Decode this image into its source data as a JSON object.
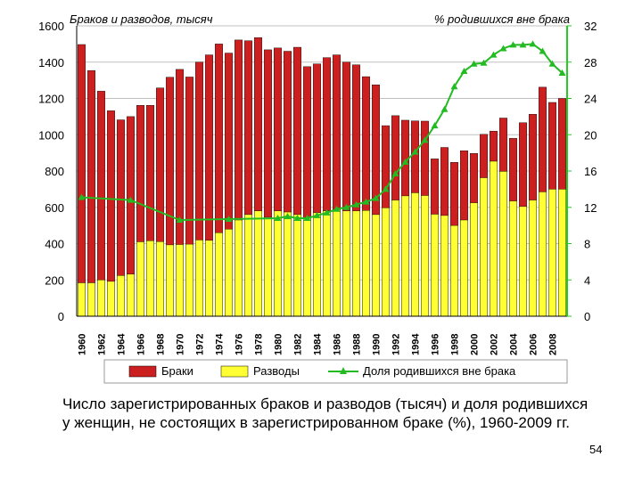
{
  "caption": "Число зарегистрированных браков и разводов (тысяч) и доля родившихся у женщин, не состоящих в зарегистрированном браке (%), 1960-2009 гг.",
  "page_number": "54",
  "chart_data": {
    "type": "bar",
    "left_axis_title": "Браков и разводов, тысяч",
    "right_axis_title": "% родившихся вне брака",
    "ylim": [
      0,
      1600
    ],
    "y_ticks": [
      "0",
      "200",
      "400",
      "600",
      "800",
      "1000",
      "1200",
      "1400",
      "1600"
    ],
    "y2lim": [
      0,
      32
    ],
    "y2_ticks": [
      "0",
      "4",
      "8",
      "12",
      "16",
      "20",
      "24",
      "28",
      "32"
    ],
    "x_tick_labels": [
      "1960",
      "1962",
      "1964",
      "1966",
      "1968",
      "1970",
      "1972",
      "1974",
      "1976",
      "1978",
      "1980",
      "1982",
      "1984",
      "1986",
      "1988",
      "1990",
      "1992",
      "1994",
      "1996",
      "1998",
      "2000",
      "2002",
      "2004",
      "2006",
      "2008"
    ],
    "grid": true,
    "legend_position": "bottom",
    "colors": {
      "marriages": "#cc1f1f",
      "divorces": "#ffff33",
      "outside": "#22bb22",
      "right_axis": "#22cc22"
    },
    "x": [
      1960,
      1961,
      1962,
      1963,
      1964,
      1965,
      1966,
      1967,
      1968,
      1969,
      1970,
      1971,
      1972,
      1973,
      1974,
      1975,
      1976,
      1977,
      1978,
      1979,
      1980,
      1981,
      1982,
      1983,
      1984,
      1985,
      1986,
      1987,
      1988,
      1989,
      1990,
      1991,
      1992,
      1993,
      1994,
      1995,
      1996,
      1997,
      1998,
      1999,
      2000,
      2001,
      2002,
      2003,
      2004,
      2005,
      2006,
      2007,
      2008,
      2009
    ],
    "series": [
      {
        "name": "Браки",
        "kind": "bar",
        "values": [
          1497,
          1354,
          1240,
          1132,
          1082,
          1100,
          1162,
          1162,
          1258,
          1317,
          1360,
          1318,
          1400,
          1440,
          1500,
          1450,
          1522,
          1518,
          1535,
          1468,
          1478,
          1460,
          1482,
          1375,
          1390,
          1425,
          1440,
          1400,
          1385,
          1320,
          1275,
          1050,
          1105,
          1080,
          1076,
          1075,
          867,
          930,
          848,
          912,
          897,
          1002,
          1020,
          1092,
          980,
          1066,
          1113,
          1262,
          1178,
          1200
        ]
      },
      {
        "name": "Разводы",
        "kind": "bar",
        "values": [
          184,
          184,
          200,
          192,
          224,
          232,
          410,
          416,
          411,
          393,
          395,
          397,
          420,
          418,
          460,
          480,
          530,
          560,
          580,
          545,
          580,
          574,
          560,
          540,
          570,
          580,
          588,
          580,
          580,
          583,
          560,
          597,
          640,
          663,
          680,
          665,
          562,
          555,
          500,
          530,
          625,
          763,
          854,
          798,
          635,
          605,
          640,
          685,
          700,
          700
        ]
      },
      {
        "name": "Доля родившихся вне брака",
        "kind": "line",
        "axis": "right",
        "points": [
          [
            1960,
            13.1
          ],
          [
            1965,
            12.8
          ],
          [
            1970,
            10.6
          ],
          [
            1975,
            10.7
          ],
          [
            1980,
            10.8
          ],
          [
            1981,
            11.0
          ],
          [
            1982,
            10.8
          ],
          [
            1983,
            10.8
          ],
          [
            1984,
            11.1
          ],
          [
            1985,
            11.4
          ],
          [
            1986,
            11.8
          ],
          [
            1987,
            12.0
          ],
          [
            1988,
            12.3
          ],
          [
            1989,
            12.6
          ],
          [
            1990,
            13.0
          ],
          [
            1991,
            14.0
          ],
          [
            1992,
            15.7
          ],
          [
            1993,
            17.0
          ],
          [
            1994,
            18.1
          ],
          [
            1995,
            19.4
          ],
          [
            1996,
            21.0
          ],
          [
            1997,
            22.8
          ],
          [
            1998,
            25.3
          ],
          [
            1999,
            27.0
          ],
          [
            2000,
            27.8
          ],
          [
            2001,
            27.9
          ],
          [
            2002,
            28.8
          ],
          [
            2003,
            29.5
          ],
          [
            2004,
            29.9
          ],
          [
            2005,
            29.9
          ],
          [
            2006,
            30.0
          ],
          [
            2007,
            29.2
          ],
          [
            2008,
            27.8
          ],
          [
            2009,
            26.8
          ]
        ]
      }
    ]
  }
}
